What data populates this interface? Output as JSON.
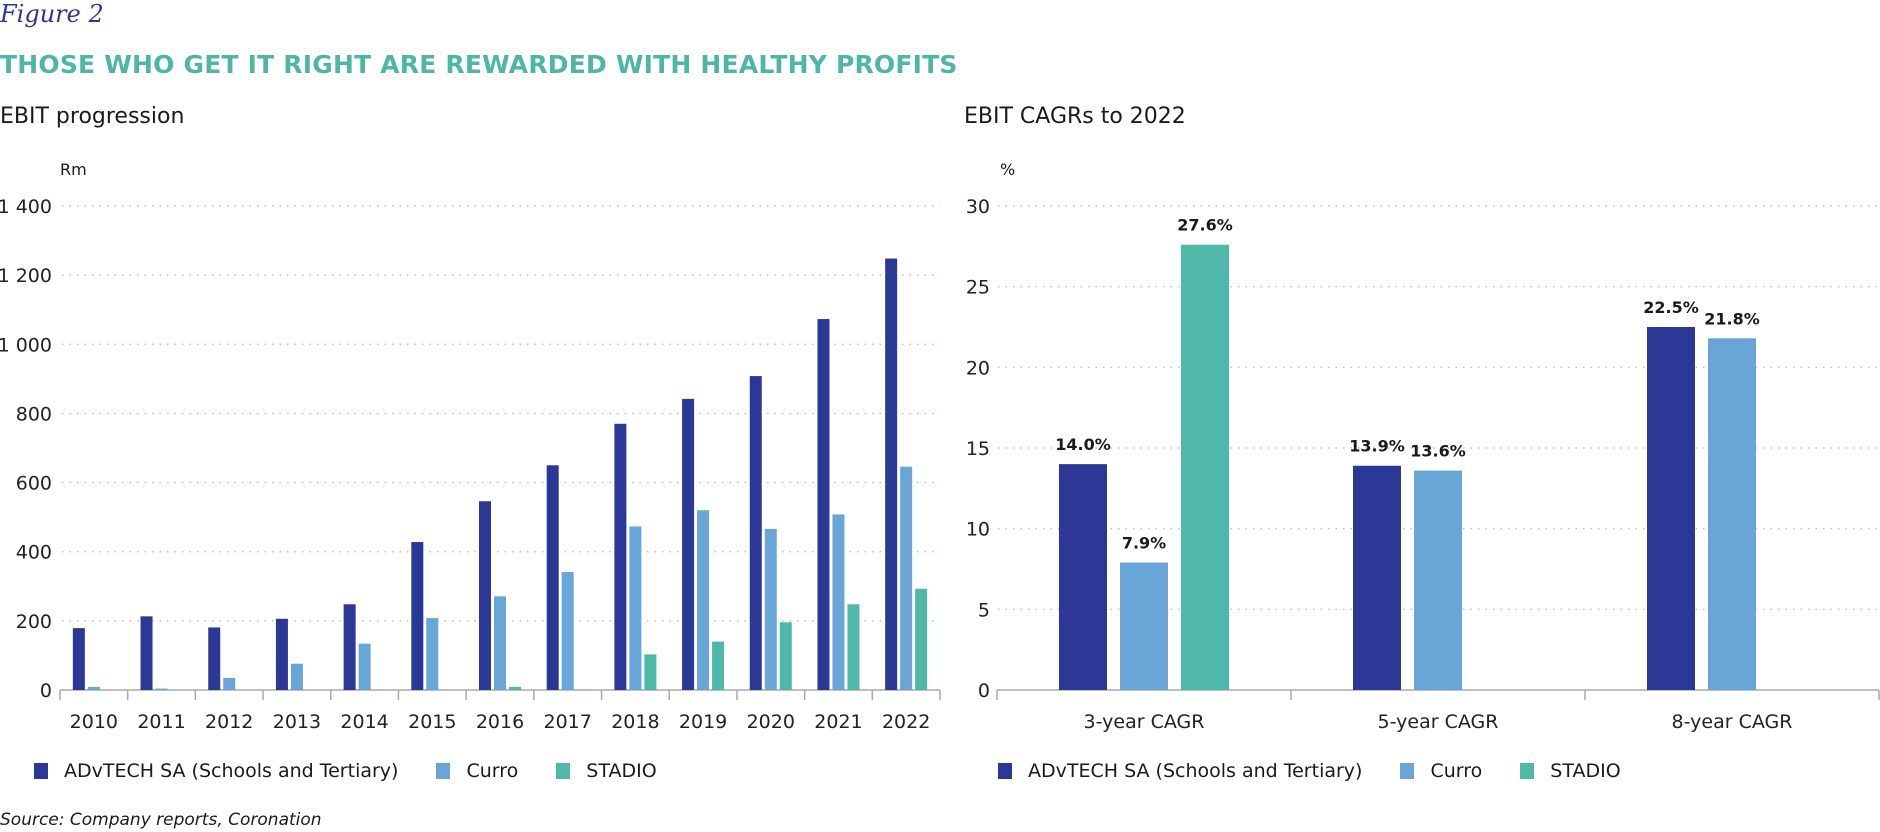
{
  "figure_label": "Figure 2",
  "figure_title": "THOSE WHO GET IT RIGHT ARE REWARDED WITH HEALTHY PROFITS",
  "source": "Source: Company reports, Coronation",
  "colors": {
    "ADvTECH": "#2b3896",
    "Curro": "#6aa5d8",
    "STADIO": "#4fb8a8",
    "title": "#4db6a6",
    "figure_label": "#2b3990"
  },
  "left": {
    "title": "EBIT progression",
    "unit": "Rm",
    "legend": [
      "ADvTECH SA (Schools and Tertiary)",
      "Curro",
      "STADIO"
    ]
  },
  "right": {
    "title": "EBIT CAGRs to 2022",
    "unit": "%",
    "legend": [
      "ADvTECH SA (Schools and Tertiary)",
      "Curro",
      "STADIO"
    ]
  },
  "chart_data": [
    {
      "type": "bar",
      "title": "EBIT progression",
      "xlabel": "",
      "ylabel": "Rm",
      "ylim": [
        0,
        1400
      ],
      "yticks": [
        0,
        200,
        400,
        600,
        800,
        1000,
        1200,
        1400
      ],
      "ytick_labels": [
        "0",
        "200",
        "400",
        "600",
        "800",
        "1 000",
        "1 200",
        "1 400"
      ],
      "grid": true,
      "legend_position": "bottom-left",
      "categories": [
        "2010",
        "2011",
        "2012",
        "2013",
        "2014",
        "2015",
        "2016",
        "2017",
        "2018",
        "2019",
        "2020",
        "2021",
        "2022"
      ],
      "series": [
        {
          "name": "ADvTECH SA (Schools and Tertiary)",
          "values": [
            179,
            213,
            181,
            206,
            248,
            428,
            546,
            650,
            770,
            842,
            908,
            1073,
            1248
          ]
        },
        {
          "name": "Curro",
          "values": [
            9,
            4,
            35,
            76,
            134,
            208,
            271,
            341,
            473,
            520,
            466,
            508,
            646
          ]
        },
        {
          "name": "STADIO",
          "values": [
            0,
            0,
            0,
            0,
            0,
            0,
            9,
            1,
            103,
            140,
            196,
            248,
            293
          ]
        }
      ]
    },
    {
      "type": "bar",
      "title": "EBIT CAGRs to 2022",
      "xlabel": "",
      "ylabel": "%",
      "ylim": [
        0,
        30
      ],
      "yticks": [
        0,
        5,
        10,
        15,
        20,
        25,
        30
      ],
      "ytick_labels": [
        "0",
        "5",
        "10",
        "15",
        "20",
        "25",
        "30"
      ],
      "grid": true,
      "legend_position": "bottom-left",
      "categories": [
        "3-year CAGR",
        "5-year CAGR",
        "8-year CAGR"
      ],
      "series": [
        {
          "name": "ADvTECH SA (Schools and Tertiary)",
          "values": [
            14.0,
            13.9,
            22.5
          ],
          "labels": [
            "14.0%",
            "13.9%",
            "22.5%"
          ]
        },
        {
          "name": "Curro",
          "values": [
            7.9,
            13.6,
            21.8
          ],
          "labels": [
            "7.9%",
            "13.6%",
            "21.8%"
          ]
        },
        {
          "name": "STADIO",
          "values": [
            27.6,
            null,
            null
          ],
          "labels": [
            "27.6%",
            "",
            ""
          ]
        }
      ]
    }
  ]
}
